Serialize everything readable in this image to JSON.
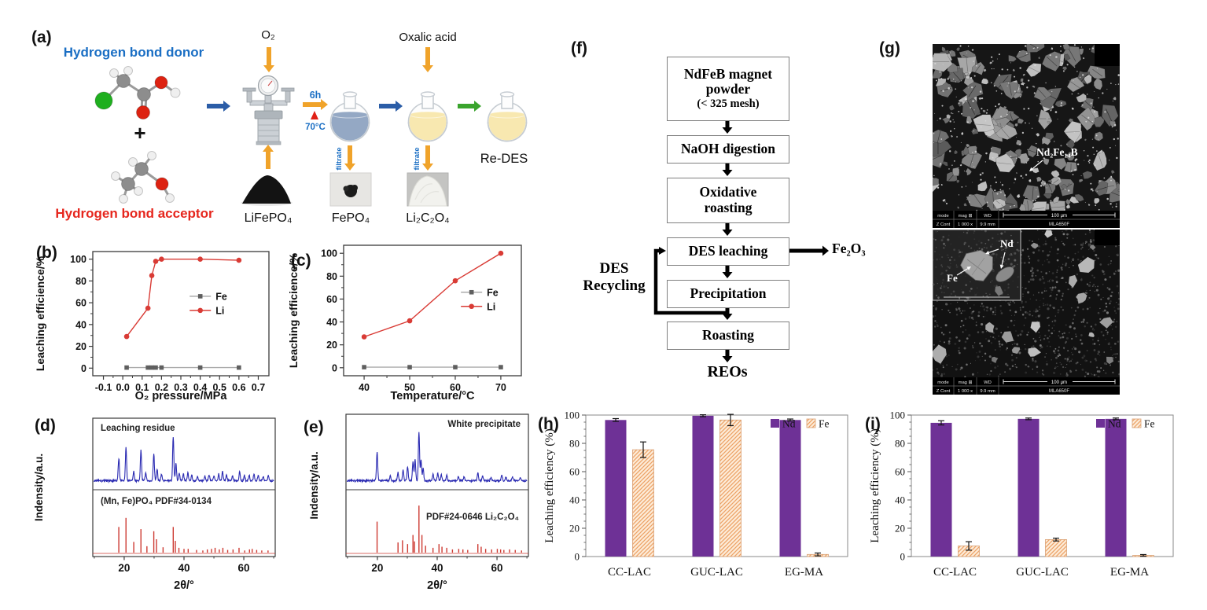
{
  "panels": {
    "a": {
      "label": "(a)",
      "hydrogen_bond_donor": "Hydrogen bond donor",
      "hydrogen_bond_acceptor": "Hydrogen bond acceptor",
      "plus": "+",
      "o2": "O₂",
      "oxalic_acid": "Oxalic acid",
      "reaction_time": "6h",
      "reaction_temp": "70°C",
      "filtrate_left": "filtrate",
      "filtrate_right": "filtrate",
      "lifepo4": "LiFePO₄",
      "fepo4": "FePO₄",
      "li2c2o4": "Li₂C₂O₄",
      "redes": "Re-DES"
    },
    "b": {
      "label": "(b)"
    },
    "c": {
      "label": "(c)"
    },
    "d": {
      "label": "(d)"
    },
    "e": {
      "label": "(e)"
    },
    "f": {
      "label": "(f)",
      "boxes": [
        {
          "lines": [
            "NdFeB magnet",
            "powder",
            "(< 325 mesh)"
          ]
        },
        {
          "lines": [
            "NaOH digestion"
          ]
        },
        {
          "lines": [
            "Oxidative",
            "roasting"
          ]
        },
        {
          "lines": [
            "DES leaching"
          ]
        },
        {
          "lines": [
            "Precipitation"
          ]
        },
        {
          "lines": [
            "Roasting"
          ]
        }
      ],
      "side_output": "Fe₂O₃",
      "recycle": [
        "DES",
        "Recycling"
      ],
      "final_output": "REOs"
    },
    "g": {
      "label": "(g)",
      "annotation_top": "Nd₂Fe₁₄B",
      "annotation_nd": "Nd",
      "annotation_fe": "Fe",
      "infobar": {
        "r1": [
          "mode",
          "mag ⊞",
          "WD"
        ],
        "r2": [
          "Z Cont",
          "1 000 x",
          "9.9 mm"
        ],
        "scale": "100 μm",
        "instrument": "MLA650F"
      }
    },
    "h": {
      "label": "(h)"
    },
    "i": {
      "label": "(i)"
    }
  },
  "colors": {
    "blue_text": "#1b6fc4",
    "red_text": "#e6261d",
    "arrow_yellow": "#f0a32a",
    "arrow_blue": "#2b5da7",
    "arrow_green": "#3aa42d",
    "flask_liquid_blue": "#94a8c4",
    "flask_liquid_yellow": "#f8e8b0",
    "atom_cl_green": "#1faf1f",
    "atom_o_red": "#dd2211",
    "atom_c_gray": "#8d8d8d",
    "atom_h_white": "#efefef"
  },
  "chart_data": [
    {
      "id": "b",
      "type": "line",
      "xlabel": "O₂ pressure/MPa",
      "ylabel": "Leaching efficience/%",
      "xlim": [
        -0.155,
        0.755
      ],
      "ylim": [
        -7,
        107
      ],
      "xticks": [
        -0.1,
        0.0,
        0.1,
        0.2,
        0.3,
        0.4,
        0.5,
        0.6,
        0.7
      ],
      "yticks": [
        0,
        20,
        40,
        60,
        80,
        100
      ],
      "xtick_decimals": 1,
      "legend_frac": [
        0.55,
        0.36
      ],
      "series": [
        {
          "name": "Fe",
          "marker": "square",
          "line_color": "#ababab",
          "marker_color": "#5f5f5f",
          "x": [
            0.02,
            0.13,
            0.15,
            0.17,
            0.2,
            0.4,
            0.6
          ],
          "y": [
            0.5,
            0.5,
            0.5,
            0.5,
            0.5,
            0.5,
            0.5
          ]
        },
        {
          "name": "Li",
          "marker": "circle",
          "line_color": "#d93b35",
          "marker_color": "#d93b35",
          "x": [
            0.02,
            0.13,
            0.15,
            0.17,
            0.2,
            0.4,
            0.6
          ],
          "y": [
            29,
            55,
            85,
            98,
            100,
            100,
            99
          ]
        }
      ]
    },
    {
      "id": "c",
      "type": "line",
      "xlabel": "Temperature/°C",
      "ylabel": "Leaching efficience/%",
      "xlim": [
        35.5,
        74.5
      ],
      "ylim": [
        -7,
        107
      ],
      "xticks": [
        40,
        50,
        60,
        70
      ],
      "yticks": [
        0,
        20,
        40,
        60,
        80,
        100
      ],
      "xtick_decimals": 0,
      "legend_frac": [
        0.66,
        0.36
      ],
      "series": [
        {
          "name": "Fe",
          "marker": "square",
          "line_color": "#ababab",
          "marker_color": "#5f5f5f",
          "x": [
            40,
            50,
            60,
            70
          ],
          "y": [
            0.5,
            0.5,
            0.5,
            0.5
          ]
        },
        {
          "name": "Li",
          "marker": "circle",
          "line_color": "#d93b35",
          "marker_color": "#d93b35",
          "x": [
            40,
            50,
            60,
            70
          ],
          "y": [
            27,
            41,
            76,
            100
          ]
        }
      ]
    },
    {
      "id": "d",
      "type": "xrd",
      "xlabel": "2θ/°",
      "ylabel": "Indensity/a.u.",
      "xlim": [
        9.5,
        70.5
      ],
      "xticks": [
        20,
        40,
        60
      ],
      "top_label": "Leaching residue",
      "top_label_anchor": "start",
      "bottom_label": "(Mn, Fe)PO₄ PDF#34-0134",
      "bottom_label_anchor": "start",
      "trace_color": "#2a2ab2",
      "ref_color": "#cd3a32",
      "trace_peaks": [
        [
          18.2,
          40
        ],
        [
          20.6,
          58
        ],
        [
          23.2,
          16
        ],
        [
          25.6,
          55
        ],
        [
          27.2,
          14
        ],
        [
          29.9,
          47
        ],
        [
          31,
          20
        ],
        [
          32.5,
          12
        ],
        [
          36.4,
          78
        ],
        [
          37.3,
          30
        ],
        [
          38.4,
          14
        ],
        [
          39.8,
          12
        ],
        [
          41.3,
          14
        ],
        [
          42.6,
          10
        ],
        [
          44.5,
          8
        ],
        [
          47,
          8
        ],
        [
          48.4,
          10
        ],
        [
          50,
          9
        ],
        [
          51.6,
          12
        ],
        [
          52.9,
          16
        ],
        [
          54.2,
          10
        ],
        [
          56.2,
          8
        ],
        [
          58.6,
          16
        ],
        [
          60.2,
          9
        ],
        [
          61.8,
          9
        ],
        [
          63.4,
          12
        ],
        [
          64.8,
          9
        ],
        [
          66.5,
          7
        ],
        [
          68.2,
          9
        ]
      ],
      "ref_peaks": [
        [
          18.2,
          48
        ],
        [
          20.6,
          65
        ],
        [
          23.2,
          20
        ],
        [
          25.6,
          44
        ],
        [
          27.6,
          12
        ],
        [
          29.9,
          40
        ],
        [
          30.8,
          25
        ],
        [
          33,
          10
        ],
        [
          36.4,
          48
        ],
        [
          37.1,
          22
        ],
        [
          38.3,
          9
        ],
        [
          40,
          7
        ],
        [
          41.4,
          7
        ],
        [
          44.2,
          5
        ],
        [
          46.3,
          4
        ],
        [
          47.8,
          6
        ],
        [
          49.2,
          7
        ],
        [
          50.4,
          9
        ],
        [
          51.8,
          6
        ],
        [
          53,
          9
        ],
        [
          54.6,
          5
        ],
        [
          56.4,
          6
        ],
        [
          58.4,
          9
        ],
        [
          60.3,
          4
        ],
        [
          61.9,
          6
        ],
        [
          62.8,
          7
        ],
        [
          64.3,
          5
        ],
        [
          66,
          4
        ],
        [
          68.1,
          4
        ]
      ]
    },
    {
      "id": "e",
      "type": "xrd",
      "xlabel": "2θ/°",
      "ylabel": "Indensity/a.u.",
      "xlim": [
        9.5,
        70.5
      ],
      "xticks": [
        20,
        40,
        60
      ],
      "top_label": "White precipitate",
      "top_label_anchor": "end",
      "bottom_label": "PDF#24-0646 Li₂C₂O₄",
      "bottom_label_anchor": "end",
      "trace_color": "#2a2ab2",
      "ref_color": "#cd3a32",
      "trace_peaks": [
        [
          19.9,
          48
        ],
        [
          24.3,
          8
        ],
        [
          26.9,
          13
        ],
        [
          28.6,
          19
        ],
        [
          30.1,
          23
        ],
        [
          31.9,
          31
        ],
        [
          32.6,
          36
        ],
        [
          33.9,
          80
        ],
        [
          34.6,
          34
        ],
        [
          35.3,
          20
        ],
        [
          38.6,
          11
        ],
        [
          40.2,
          13
        ],
        [
          41.4,
          10
        ],
        [
          43.2,
          10
        ],
        [
          47.1,
          7
        ],
        [
          49,
          6
        ],
        [
          53.6,
          13
        ],
        [
          55.2,
          7
        ],
        [
          58,
          6
        ],
        [
          61.6,
          9
        ],
        [
          63,
          6
        ],
        [
          65.2,
          6
        ],
        [
          67.8,
          5
        ]
      ],
      "ref_peaks": [
        [
          19.9,
          58
        ],
        [
          26.9,
          19
        ],
        [
          28.4,
          23
        ],
        [
          30.1,
          16
        ],
        [
          31.9,
          33
        ],
        [
          32.4,
          21
        ],
        [
          33.9,
          88
        ],
        [
          34.9,
          33
        ],
        [
          36.1,
          13
        ],
        [
          38.6,
          9
        ],
        [
          40.6,
          16
        ],
        [
          41.6,
          11
        ],
        [
          43.2,
          9
        ],
        [
          45.1,
          6
        ],
        [
          47.2,
          7
        ],
        [
          48.6,
          6
        ],
        [
          50.2,
          5
        ],
        [
          53.6,
          16
        ],
        [
          54.7,
          11
        ],
        [
          56.2,
          7
        ],
        [
          58.2,
          6
        ],
        [
          60.1,
          7
        ],
        [
          61.2,
          6
        ],
        [
          62.3,
          5
        ],
        [
          64.2,
          6
        ],
        [
          66.1,
          5
        ],
        [
          68.2,
          4
        ]
      ]
    },
    {
      "id": "h",
      "type": "bar",
      "ylabel": "Leaching efficiency (%)",
      "categories": [
        "CC-LAC",
        "GUC-LAC",
        "EG-MA"
      ],
      "ylim": [
        0,
        100
      ],
      "yticks": [
        0,
        20,
        40,
        60,
        80,
        100
      ],
      "series": [
        {
          "name": "Nd",
          "color": "#6e3196",
          "hatch": false,
          "values": [
            96.5,
            99.5,
            96.5
          ],
          "errors": [
            1,
            0.7,
            0.7
          ]
        },
        {
          "name": "Fe",
          "color": "#f5c9a4",
          "hatch": true,
          "values": [
            75.5,
            96.5,
            1.5
          ],
          "errors": [
            5.5,
            4,
            1
          ]
        }
      ]
    },
    {
      "id": "i",
      "type": "bar",
      "ylabel": "Leaching efficiency (%)",
      "categories": [
        "CC-LAC",
        "GUC-LAC",
        "EG-MA"
      ],
      "ylim": [
        0,
        100
      ],
      "yticks": [
        0,
        20,
        40,
        60,
        80,
        100
      ],
      "series": [
        {
          "name": "Nd",
          "color": "#6e3196",
          "hatch": false,
          "values": [
            94.5,
            97.3,
            97.3
          ],
          "errors": [
            1.5,
            0.6,
            0.6
          ]
        },
        {
          "name": "Fe",
          "color": "#f5c9a4",
          "hatch": true,
          "values": [
            7.5,
            12,
            0.8
          ],
          "errors": [
            3,
            1,
            0.6
          ]
        }
      ]
    }
  ]
}
